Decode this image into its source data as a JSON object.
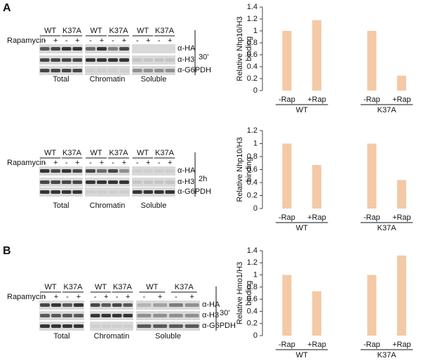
{
  "panel_labels": [
    "A",
    "B"
  ],
  "blots": [
    {
      "treatment_label": "Rapamycin",
      "antibodies": [
        "α-HA",
        "α-H3",
        "α-G6PDH"
      ],
      "time": "30'",
      "groups": [
        {
          "label": "Total",
          "genotypes": [
            "WT",
            "K37A"
          ],
          "lanes": [
            "-",
            "+",
            "-",
            "+"
          ]
        },
        {
          "label": "Chromatin",
          "genotypes": [
            "WT",
            "K37A"
          ],
          "lanes": [
            "-",
            "+",
            "-",
            "+"
          ]
        },
        {
          "label": "Soluble",
          "genotypes": [
            "WT",
            "K37A"
          ],
          "lanes": [
            "-",
            "+",
            "-",
            "+"
          ]
        }
      ]
    },
    {
      "treatment_label": "Rapamycin",
      "antibodies": [
        "α-HA",
        "α-H3",
        "α-G6PDH"
      ],
      "time": "2h",
      "groups": [
        {
          "label": "Total",
          "genotypes": [
            "WT",
            "K37A"
          ],
          "lanes": [
            "-",
            "+",
            "-",
            "+"
          ]
        },
        {
          "label": "Chromatin",
          "genotypes": [
            "WT",
            "K37A"
          ],
          "lanes": [
            "-",
            "+",
            "-",
            "+"
          ]
        },
        {
          "label": "Soluble",
          "genotypes": [
            "WT",
            "K37A"
          ],
          "lanes": [
            "-",
            "+",
            "-",
            "+"
          ]
        }
      ]
    },
    {
      "treatment_label": "Rapamycin",
      "antibodies": [
        "α-HA",
        "α-H3",
        "α-G6PDH"
      ],
      "time": "30'",
      "groups": [
        {
          "label": "Total",
          "genotypes": [
            "WT",
            "K37A"
          ],
          "lanes": [
            "-",
            "+",
            "-",
            "+"
          ]
        },
        {
          "label": "Chromatin",
          "genotypes": [
            "WT",
            "K37A"
          ],
          "lanes": [
            "-",
            "+",
            "-",
            "+"
          ]
        },
        {
          "label": "Soluble",
          "genotypes": [
            "WT",
            "K37A"
          ],
          "lanes": [
            "-",
            "+",
            "-",
            "+"
          ]
        }
      ]
    }
  ],
  "chart_data": [
    {
      "type": "bar",
      "ylabel": [
        "Relative Nhp10/H3",
        "binding"
      ],
      "categories": [
        "-Rap",
        "+Rap",
        "-Rap",
        "+Rap"
      ],
      "groups": [
        "WT",
        "K37A"
      ],
      "values": [
        1,
        1.18,
        1,
        0.25
      ],
      "color": "#f4c9a6",
      "ylim": [
        0,
        1.4
      ],
      "yticks": [
        0,
        0.2,
        0.4,
        0.6,
        0.8,
        1,
        1.2,
        1.4
      ]
    },
    {
      "type": "bar",
      "ylabel": [
        "Relative Nhp10/H3",
        "binding"
      ],
      "categories": [
        "-Rap",
        "+Rap",
        "-Rap",
        "+Rap"
      ],
      "groups": [
        "WT",
        "K37A"
      ],
      "values": [
        1,
        0.67,
        1,
        0.44
      ],
      "color": "#f4c9a6",
      "ylim": [
        0,
        1.2
      ],
      "yticks": [
        0,
        0.2,
        0.4,
        0.6,
        0.8,
        1,
        1.2
      ]
    },
    {
      "type": "bar",
      "ylabel": [
        "Relative Hmo1/H3",
        "binding"
      ],
      "categories": [
        "-Rap",
        "+Rap",
        "-Rap",
        "+Rap"
      ],
      "groups": [
        "WT",
        "K37A"
      ],
      "values": [
        1,
        0.73,
        1,
        1.32
      ],
      "color": "#f4c9a6",
      "ylim": [
        0,
        1.4
      ],
      "yticks": [
        0,
        0.2,
        0.4,
        0.6,
        0.8,
        1,
        1.2,
        1.4
      ]
    }
  ]
}
